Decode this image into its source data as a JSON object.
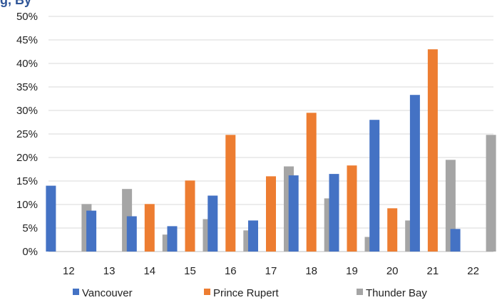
{
  "chart_data": {
    "type": "bar",
    "title": "g, By",
    "categories": [
      "12",
      "13",
      "14",
      "15",
      "16",
      "17",
      "18",
      "19",
      "20",
      "21",
      "22"
    ],
    "series": [
      {
        "name": "Vancouver",
        "color": "#4472c4",
        "values": [
          14.0,
          8.7,
          7.5,
          5.4,
          11.9,
          6.6,
          16.2,
          16.5,
          28.0,
          33.3,
          4.8
        ]
      },
      {
        "name": "Prince Rupert",
        "color": "#ed7d31",
        "values": [
          0,
          0,
          10.1,
          15.1,
          24.8,
          16.0,
          29.5,
          18.3,
          9.2,
          43.0,
          0
        ]
      },
      {
        "name": "Thunder Bay",
        "color": "#a5a5a5",
        "values": [
          10.1,
          13.3,
          3.6,
          6.9,
          4.5,
          18.1,
          11.3,
          3.1,
          6.6,
          19.5,
          24.8
        ]
      }
    ],
    "ylim": [
      0,
      50
    ],
    "yticks": [
      "0%",
      "5%",
      "10%",
      "15%",
      "20%",
      "25%",
      "30%",
      "35%",
      "40%",
      "45%",
      "50%"
    ],
    "xlabel": "",
    "ylabel": "",
    "grid": true,
    "legend": "bottom"
  }
}
